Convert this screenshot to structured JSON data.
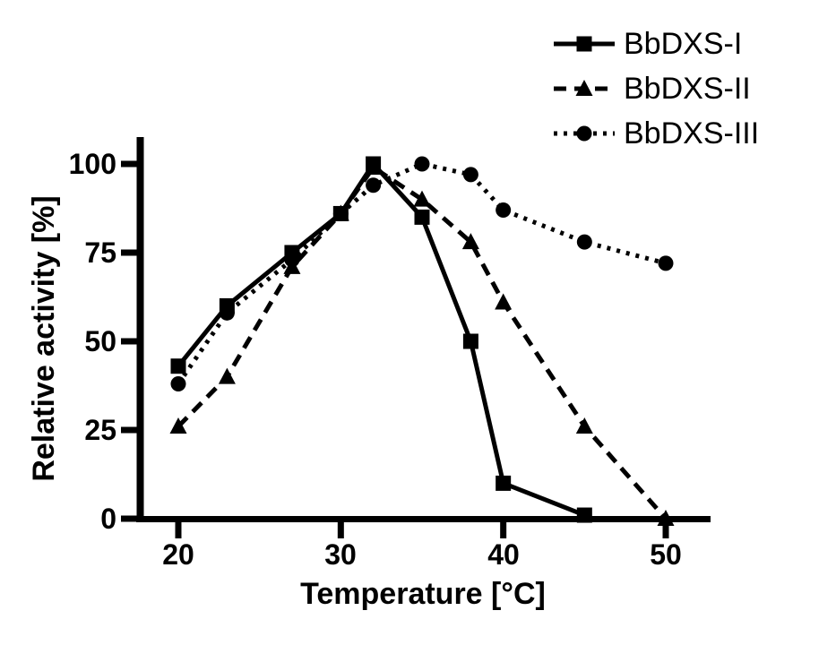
{
  "figure": {
    "background": "#ffffff",
    "ink_color": "#000000"
  },
  "chart_data": {
    "type": "line",
    "title": "",
    "xlabel": "Temperature [°C]",
    "ylabel": "Relative activity [%]",
    "xlim": [
      17.6,
      52.8
    ],
    "ylim": [
      0,
      100
    ],
    "xticks": [
      20,
      30,
      40,
      50
    ],
    "yticks": [
      0,
      25,
      50,
      75,
      100
    ],
    "grid": false,
    "legend_position": "top-right",
    "series": [
      {
        "name": "BbDXS-I",
        "marker": "square",
        "line_style": "solid",
        "color": "#000000",
        "x": [
          20,
          23,
          27,
          30,
          32,
          35,
          38,
          40,
          45
        ],
        "y": [
          43,
          60,
          75,
          86,
          100,
          85,
          50,
          10,
          1
        ]
      },
      {
        "name": "BbDXS-II",
        "marker": "triangle",
        "line_style": "dashed",
        "color": "#000000",
        "x": [
          20,
          23,
          27,
          30,
          32,
          35,
          38,
          40,
          45,
          50
        ],
        "y": [
          26,
          40,
          71,
          86,
          99,
          90,
          78,
          61,
          26,
          0
        ]
      },
      {
        "name": "BbDXS-III",
        "marker": "circle",
        "line_style": "dotted",
        "color": "#000000",
        "x": [
          20,
          23,
          27,
          30,
          32,
          35,
          38,
          40,
          45,
          50
        ],
        "y": [
          38,
          58,
          73,
          86,
          94,
          100,
          97,
          87,
          78,
          72
        ]
      }
    ]
  }
}
